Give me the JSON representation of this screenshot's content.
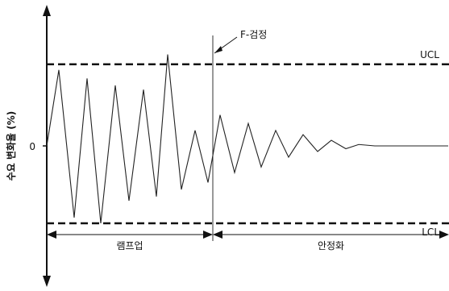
{
  "chart_data": {
    "type": "line",
    "ylabel": "수요 변화율 (%)",
    "ylim": [
      -100,
      100
    ],
    "y_ticks": [
      {
        "value": 0,
        "label": "0"
      }
    ],
    "control_limits": [
      {
        "name": "UCL",
        "label": "UCL",
        "value": 58,
        "style": "dashed"
      },
      {
        "name": "LCL",
        "label": "LCL",
        "value": -55,
        "style": "dashed"
      }
    ],
    "event_marker": {
      "label": "F-검정",
      "x": 264
    },
    "phases": [
      {
        "label": "램프업",
        "x_start": 58,
        "x_end": 264
      },
      {
        "label": "안정화",
        "x_start": 264,
        "x_end": 557
      }
    ],
    "series": [
      {
        "points": [
          [
            58,
            0
          ],
          [
            73,
            54
          ],
          [
            92,
            -51
          ],
          [
            108,
            48
          ],
          [
            125,
            -55
          ],
          [
            143,
            43
          ],
          [
            160,
            -39
          ],
          [
            178,
            40
          ],
          [
            194,
            -36
          ],
          [
            208,
            65
          ],
          [
            225,
            -31
          ],
          [
            242,
            11
          ],
          [
            258,
            -26
          ],
          [
            273,
            22
          ],
          [
            291,
            -19
          ],
          [
            308,
            16
          ],
          [
            324,
            -15
          ],
          [
            342,
            11
          ],
          [
            358,
            -8
          ],
          [
            376,
            8
          ],
          [
            394,
            -4
          ],
          [
            411,
            4
          ],
          [
            429,
            -2
          ],
          [
            445,
            1
          ],
          [
            465,
            0
          ],
          [
            490,
            0
          ],
          [
            520,
            0
          ],
          [
            556,
            0
          ]
        ]
      }
    ]
  }
}
